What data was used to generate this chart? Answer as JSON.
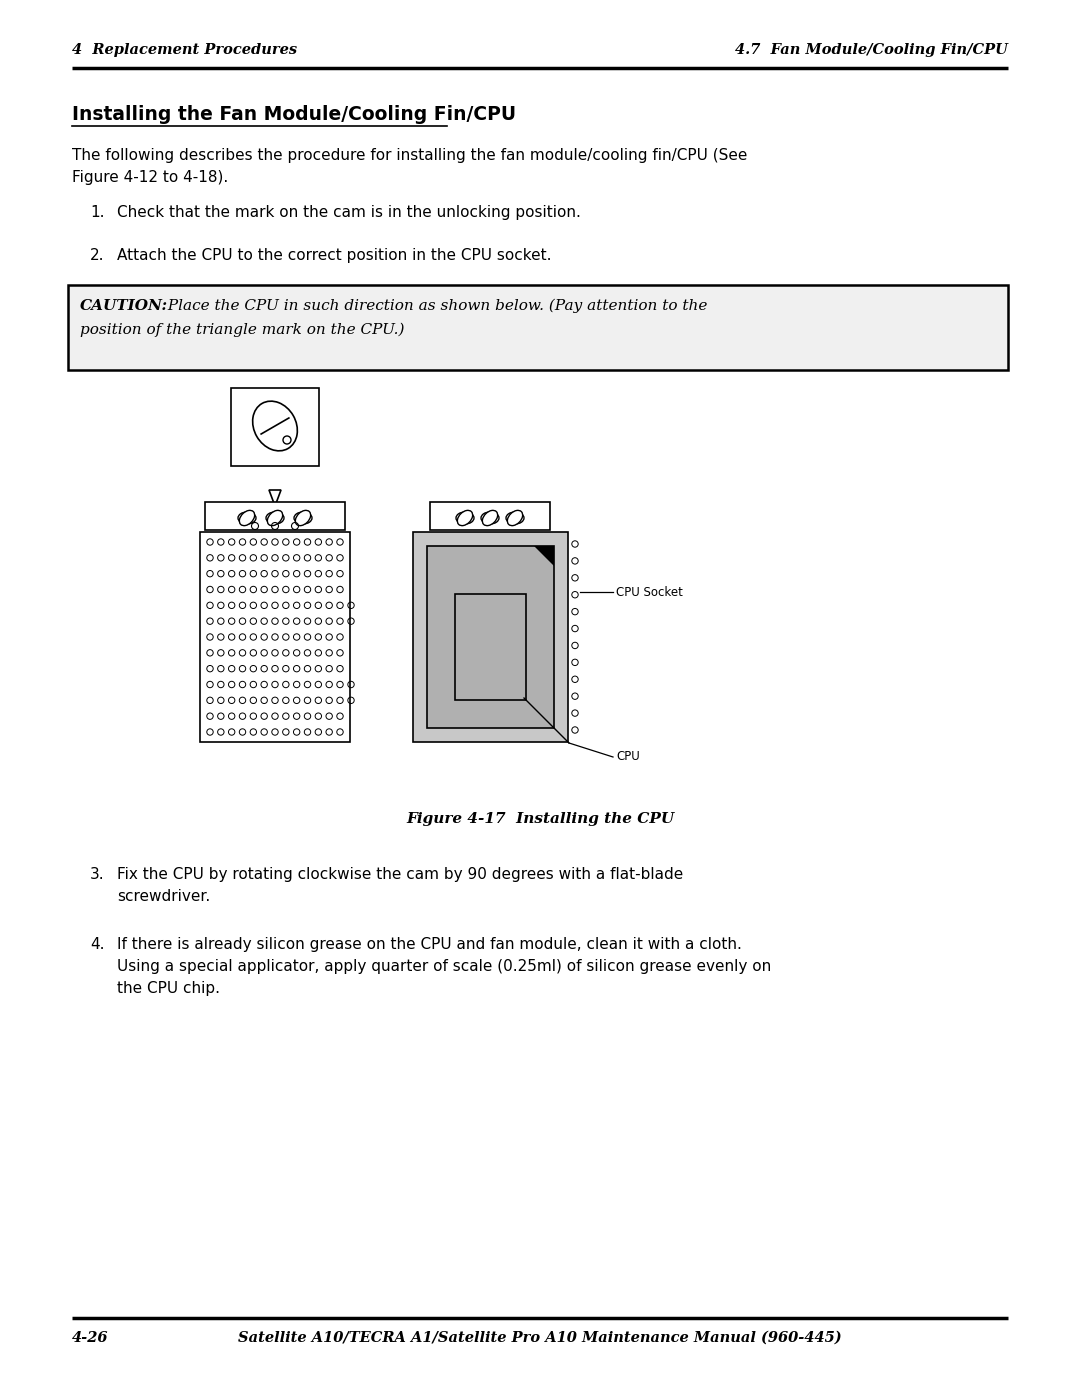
{
  "header_left": "4  Replacement Procedures",
  "header_right": "4.7  Fan Module/Cooling Fin/CPU",
  "footer_left": "4-26",
  "footer_center": "Satellite A10/TECRA A1/Satellite Pro A10 Maintenance Manual (960-445)",
  "title": "Installing the Fan Module/Cooling Fin/CPU",
  "intro_line1": "The following describes the procedure for installing the fan module/cooling fin/CPU (See",
  "intro_line2": "Figure 4-12 to 4-18).",
  "step1": "Check that the mark on the cam is in the unlocking position.",
  "step2": "Attach the CPU to the correct position in the CPU socket.",
  "caution_bold": "CAUTION:",
  "caution_rest": " Place the CPU in such direction as shown below. (Pay attention to the",
  "caution_line2": "position of the triangle mark on the CPU.)",
  "figure_caption": "Figure 4-17  Installing the CPU",
  "step3_line1": "Fix the CPU by rotating clockwise the cam by 90 degrees with a flat-blade",
  "step3_line2": "screwdriver.",
  "step4_line1": "If there is already silicon grease on the CPU and fan module, clean it with a cloth.",
  "step4_line2": "Using a special applicator, apply quarter of scale (0.25ml) of silicon grease evenly on",
  "step4_line3": "the CPU chip.",
  "bg_color": "#ffffff",
  "text_color": "#000000"
}
